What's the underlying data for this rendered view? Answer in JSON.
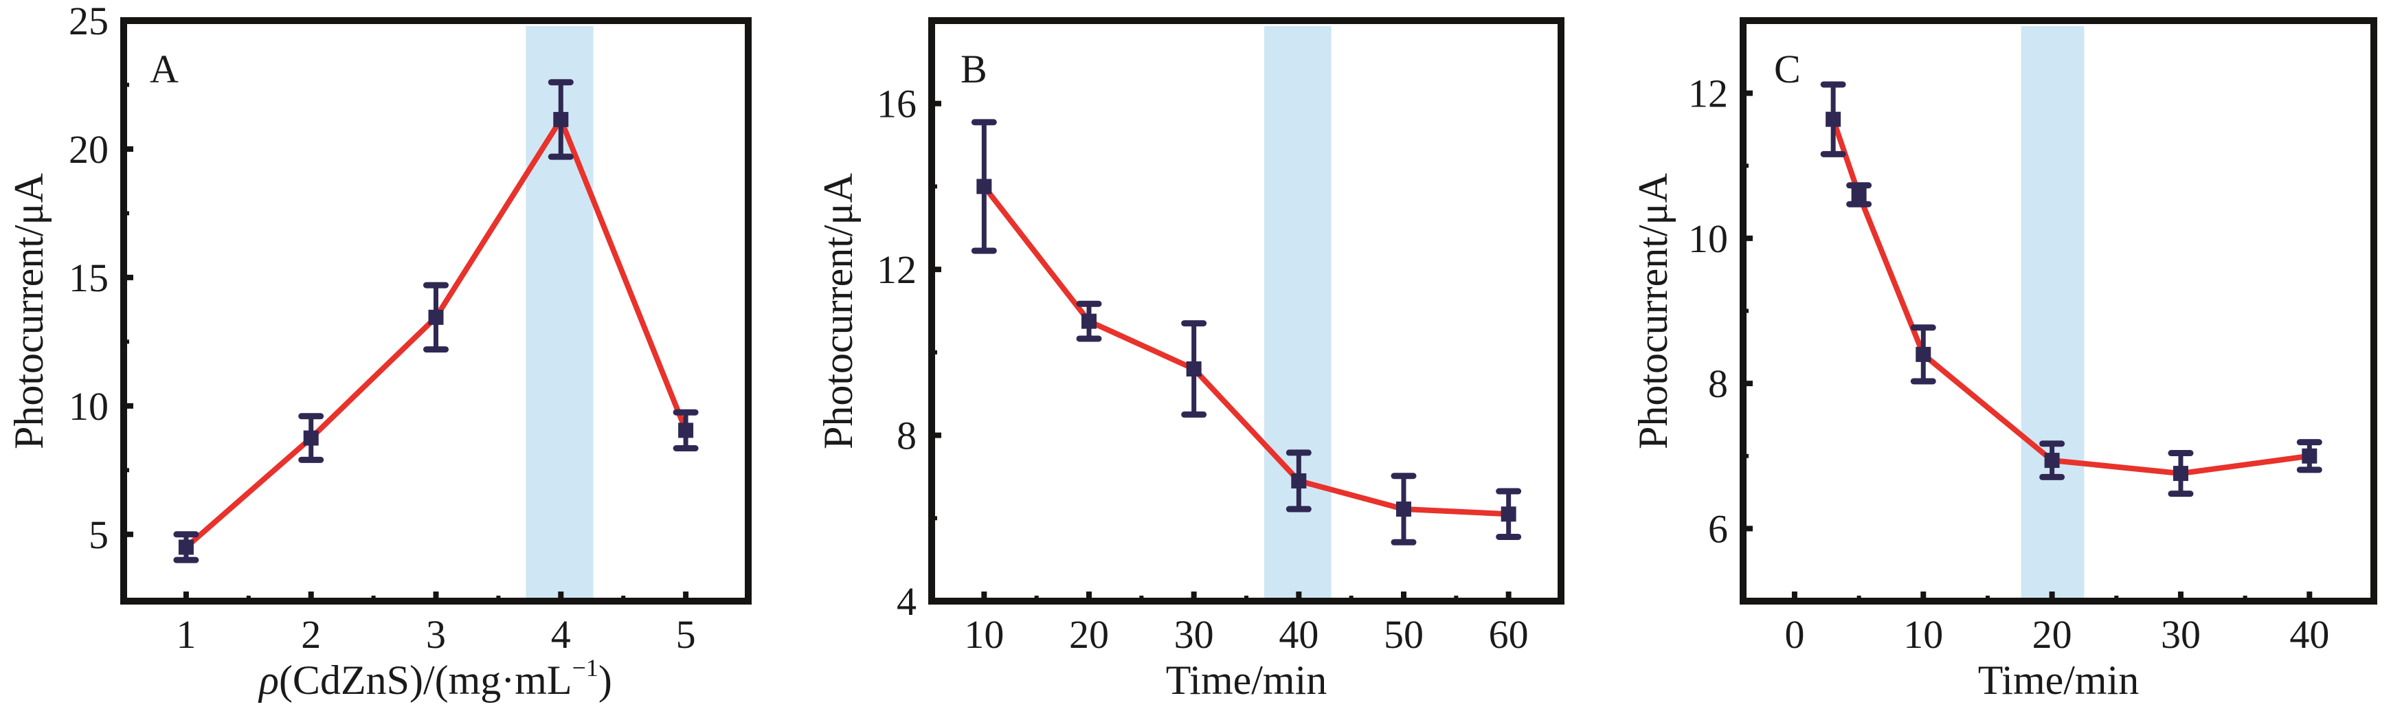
{
  "colors": {
    "line": "#e8322b",
    "marker": "#2f2853",
    "band": "#cfe6f4",
    "frame": "#161412"
  },
  "chart_data": [
    {
      "panel": "A",
      "type": "line",
      "xlabel_prefix": "ρ",
      "xlabel_main": "(CdZnS)/(mg·mL",
      "xlabel_sup": "−1",
      "xlabel_suffix": ")",
      "ylabel": "Photocurrent/μA",
      "xlim": [
        0.5,
        5.5
      ],
      "ylim": [
        2.4,
        25
      ],
      "xticks": [
        1,
        2,
        3,
        4,
        5
      ],
      "xtick_labels": [
        "1",
        "2",
        "3",
        "4",
        "5"
      ],
      "xminor": [
        1.5,
        2.5,
        3.5,
        4.5
      ],
      "yticks": [
        5,
        10,
        15,
        20,
        25
      ],
      "ytick_labels": [
        "5",
        "10",
        "15",
        "20",
        "25"
      ],
      "yminor": [
        7.5,
        12.5,
        17.5,
        22.5
      ],
      "highlight_band": [
        3.72,
        4.26
      ],
      "x": [
        1,
        2,
        3,
        4,
        5
      ],
      "y": [
        4.5,
        8.75,
        13.45,
        21.15,
        9.05
      ],
      "yerr": [
        0.5,
        0.85,
        1.25,
        1.45,
        0.7
      ],
      "grid": false
    },
    {
      "panel": "B",
      "type": "line",
      "xlabel": "Time/min",
      "ylabel": "Photocurrent/μA",
      "xlim": [
        5,
        65
      ],
      "ylim": [
        4,
        18
      ],
      "xticks": [
        10,
        20,
        30,
        40,
        50,
        60
      ],
      "xtick_labels": [
        "10",
        "20",
        "30",
        "40",
        "50",
        "60"
      ],
      "xminor": [
        15,
        25,
        35,
        45,
        55
      ],
      "yticks": [
        4,
        8,
        12,
        16
      ],
      "ytick_labels": [
        "4",
        "8",
        "12",
        "16"
      ],
      "yminor": [
        6,
        10,
        14
      ],
      "highlight_band": [
        36.7,
        43.1
      ],
      "x": [
        10,
        20,
        30,
        40,
        50,
        60
      ],
      "y": [
        14.0,
        10.75,
        9.6,
        6.9,
        6.22,
        6.1
      ],
      "yerr": [
        1.55,
        0.42,
        1.1,
        0.68,
        0.8,
        0.55
      ],
      "grid": false
    },
    {
      "panel": "C",
      "type": "line",
      "xlabel": "Time/min",
      "ylabel": "Photocurrent/μA",
      "xlim": [
        -4,
        45
      ],
      "ylim": [
        5,
        13
      ],
      "xticks": [
        0,
        10,
        20,
        30,
        40
      ],
      "xtick_labels": [
        "0",
        "10",
        "20",
        "30",
        "40"
      ],
      "xminor": [
        5,
        15,
        25,
        35
      ],
      "yticks": [
        6,
        8,
        10,
        12
      ],
      "ytick_labels": [
        "6",
        "8",
        "10",
        "12"
      ],
      "yminor": [
        7,
        9,
        11
      ],
      "highlight_band": [
        17.6,
        22.5
      ],
      "x": [
        3,
        5,
        10,
        20,
        30,
        40
      ],
      "y": [
        11.64,
        10.6,
        8.4,
        6.94,
        6.76,
        7.0
      ],
      "yerr": [
        0.48,
        0.13,
        0.37,
        0.23,
        0.28,
        0.19
      ],
      "grid": false
    }
  ]
}
